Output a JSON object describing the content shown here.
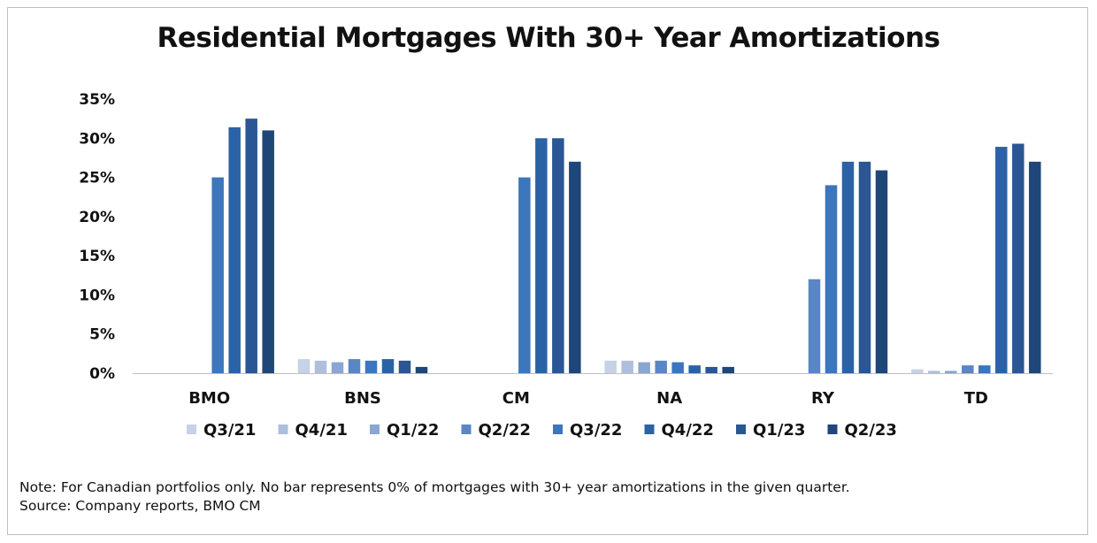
{
  "chart_data": {
    "type": "bar",
    "title": "Residential Mortgages With 30+ Year Amortizations",
    "categories": [
      "BMO",
      "BNS",
      "CM",
      "NA",
      "RY",
      "TD"
    ],
    "ylim": [
      0,
      35
    ],
    "yticks": [
      0,
      5,
      10,
      15,
      20,
      25,
      30,
      35
    ],
    "ytick_labels": [
      "0%",
      "5%",
      "10%",
      "15%",
      "20%",
      "25%",
      "30%",
      "35%"
    ],
    "legend_position": "bottom",
    "grid": false,
    "series": [
      {
        "name": "Q3/21",
        "color": "#c6d2e5",
        "values": [
          0,
          1.8,
          0,
          1.6,
          0,
          0.5
        ]
      },
      {
        "name": "Q4/21",
        "color": "#adbfdd",
        "values": [
          0,
          1.6,
          0,
          1.6,
          0,
          0.3
        ]
      },
      {
        "name": "Q1/22",
        "color": "#8aa6d2",
        "values": [
          0,
          1.4,
          0,
          1.4,
          0,
          0.3
        ]
      },
      {
        "name": "Q2/22",
        "color": "#5b86c5",
        "values": [
          0,
          1.8,
          0,
          1.6,
          12,
          1.0
        ]
      },
      {
        "name": "Q3/22",
        "color": "#3c76bd",
        "values": [
          25,
          1.6,
          25,
          1.4,
          24,
          1.0
        ]
      },
      {
        "name": "Q4/22",
        "color": "#2b62a6",
        "values": [
          31.4,
          1.8,
          30,
          1.0,
          27,
          28.9
        ]
      },
      {
        "name": "Q1/23",
        "color": "#2a5693",
        "values": [
          32.5,
          1.6,
          30,
          0.8,
          27,
          29.3
        ]
      },
      {
        "name": "Q2/23",
        "color": "#1f4678",
        "values": [
          31,
          0.8,
          27,
          0.8,
          25.9,
          27
        ]
      }
    ]
  },
  "notes": {
    "line1": "Note: For Canadian portfolios only. No bar represents 0% of mortgages with 30+ year amortizations in the given quarter.",
    "line2": "Source: Company reports, BMO CM"
  }
}
